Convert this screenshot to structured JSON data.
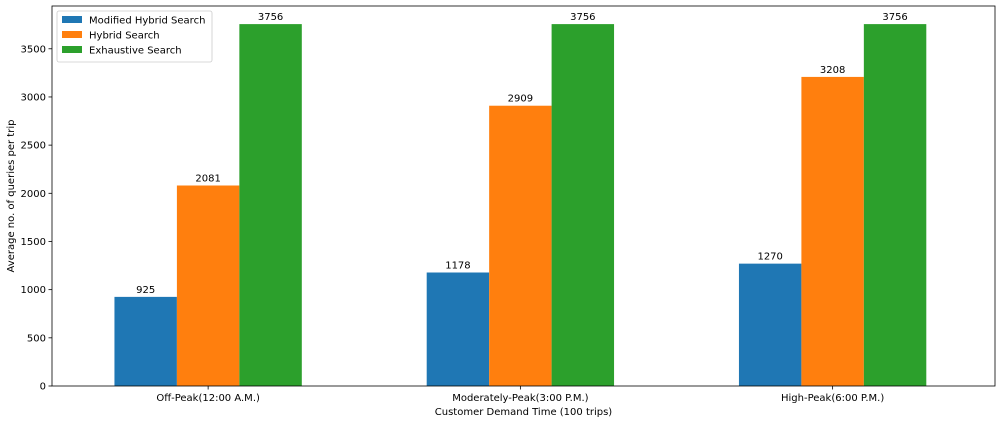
{
  "chart_data": {
    "type": "bar",
    "title": "",
    "xlabel": "Customer Demand Time (100 trips)",
    "ylabel": "Average no. of queries per trip",
    "categories": [
      "Off-Peak(12:00 A.M.)",
      "Moderately-Peak(3:00 P.M.)",
      "High-Peak(6:00 P.M.)"
    ],
    "series": [
      {
        "name": "Modified Hybrid Search",
        "values": [
          925,
          1178,
          1270
        ],
        "color": "#1f77b4"
      },
      {
        "name": "Hybrid Search",
        "values": [
          2081,
          2909,
          3208
        ],
        "color": "#ff7f0e"
      },
      {
        "name": "Exhaustive Search",
        "values": [
          3756,
          3756,
          3756
        ],
        "color": "#2ca02c"
      }
    ],
    "ylim": [
      0,
      3944
    ],
    "yticks": [
      0,
      500,
      1000,
      1500,
      2000,
      2500,
      3000,
      3500
    ],
    "grid": false,
    "legend_position": "top-left",
    "data_labels": true
  }
}
